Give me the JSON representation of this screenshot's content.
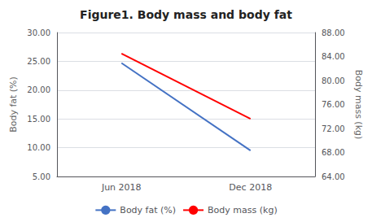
{
  "chart_data": {
    "type": "line",
    "title": "Figure1. Body mass and body fat",
    "categories": [
      "Jun 2018",
      "Dec 2018"
    ],
    "series": [
      {
        "name": "Body fat (%)",
        "color": "#4472C4",
        "values": [
          24.7,
          9.5
        ]
      },
      {
        "name": "Body mass (kg)",
        "color": "#FF0000",
        "values": [
          84.5,
          73.6
        ],
        "axis": "y2"
      }
    ],
    "ylabel": "Body fat (%)",
    "y2label": "Body mass (kg)",
    "ylim": [
      5.0,
      30.0
    ],
    "yticks": [
      {
        "value": 5.0,
        "label": "5.00"
      },
      {
        "value": 10.0,
        "label": "10.00"
      },
      {
        "value": 15.0,
        "label": "15.00"
      },
      {
        "value": 20.0,
        "label": "20.00"
      },
      {
        "value": 25.0,
        "label": "25.00"
      },
      {
        "value": 30.0,
        "label": "30.00"
      }
    ],
    "y2lim": [
      64.0,
      88.0
    ],
    "y2ticks": [
      {
        "value": 64.0,
        "label": "64.00"
      },
      {
        "value": 68.0,
        "label": "68.00"
      },
      {
        "value": 72.0,
        "label": "72.00"
      },
      {
        "value": 76.0,
        "label": "76.00"
      },
      {
        "value": 80.0,
        "label": "80.00"
      },
      {
        "value": 84.0,
        "label": "84.00"
      },
      {
        "value": 88.0,
        "label": "88.00"
      }
    ],
    "grid": true,
    "legend": "bottom"
  }
}
